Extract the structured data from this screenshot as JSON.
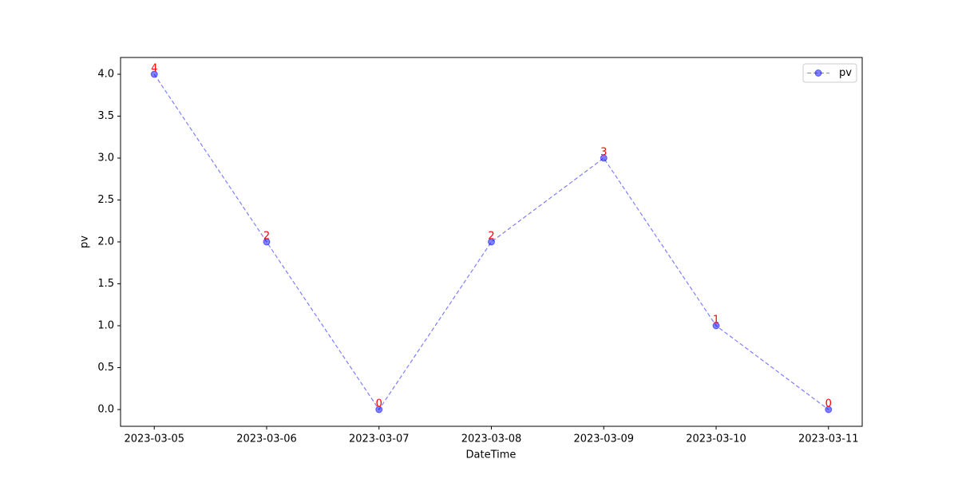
{
  "chart_data": {
    "type": "line",
    "x_label": "DateTime",
    "y_label": "pv",
    "categories": [
      "2023-03-05",
      "2023-03-06",
      "2023-03-07",
      "2023-03-08",
      "2023-03-09",
      "2023-03-10",
      "2023-03-11"
    ],
    "series": [
      {
        "name": "pv",
        "color": "#0000ff",
        "label_color": "#ff0000",
        "values": [
          4,
          2,
          0,
          2,
          3,
          1,
          0
        ]
      }
    ],
    "ylim": [
      -0.2,
      4.2
    ],
    "yticks": [
      {
        "value": 0,
        "label": "0.0"
      },
      {
        "value": 0.5,
        "label": "0.5"
      },
      {
        "value": 1,
        "label": "1.0"
      },
      {
        "value": 1.5,
        "label": "1.5"
      },
      {
        "value": 2,
        "label": "2.0"
      },
      {
        "value": 2.5,
        "label": "2.5"
      },
      {
        "value": 3,
        "label": "3.0"
      },
      {
        "value": 3.5,
        "label": "3.5"
      },
      {
        "value": 4,
        "label": "4.0"
      }
    ],
    "grid": false,
    "legend": "upper right"
  }
}
